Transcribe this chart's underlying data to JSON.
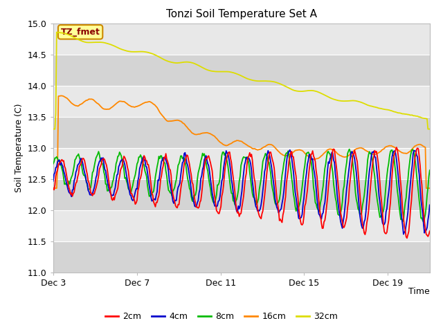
{
  "title": "Tonzi Soil Temperature Set A",
  "ylabel": "Soil Temperature (C)",
  "xlabel": "Time",
  "ylim": [
    11.0,
    15.0
  ],
  "yticks": [
    11.0,
    11.5,
    12.0,
    12.5,
    13.0,
    13.5,
    14.0,
    14.5,
    15.0
  ],
  "xtick_labels": [
    "Dec 3",
    "Dec 7",
    "Dec 11",
    "Dec 15",
    "Dec 19"
  ],
  "xtick_pos": [
    0,
    4,
    8,
    12,
    16
  ],
  "xlim": [
    0,
    18
  ],
  "annotation": "TZ_fmet",
  "legend_labels": [
    "2cm",
    "4cm",
    "8cm",
    "16cm",
    "32cm"
  ],
  "colors_2cm": "#ff0000",
  "colors_4cm": "#0000cc",
  "colors_8cm": "#00bb00",
  "colors_16cm": "#ff8800",
  "colors_32cm": "#dddd00",
  "n_points": 432,
  "figsize": [
    6.4,
    4.8
  ],
  "dpi": 100
}
